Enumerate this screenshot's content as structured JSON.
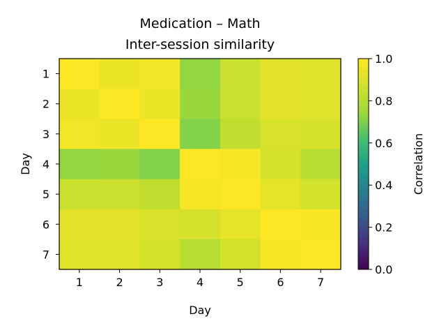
{
  "chart_data": {
    "type": "heatmap",
    "title": "Medication – Math",
    "subtitle": "Inter-session similarity",
    "xlabel": "Day",
    "ylabel": "Day",
    "x_categories": [
      "1",
      "2",
      "3",
      "4",
      "5",
      "6",
      "7"
    ],
    "y_categories": [
      "1",
      "2",
      "3",
      "4",
      "5",
      "6",
      "7"
    ],
    "values": [
      [
        1.0,
        0.95,
        0.97,
        0.73,
        0.85,
        0.92,
        0.91
      ],
      [
        0.95,
        1.0,
        0.95,
        0.74,
        0.85,
        0.92,
        0.91
      ],
      [
        0.97,
        0.95,
        1.0,
        0.71,
        0.83,
        0.89,
        0.88
      ],
      [
        0.73,
        0.74,
        0.71,
        1.0,
        0.98,
        0.88,
        0.81
      ],
      [
        0.85,
        0.85,
        0.83,
        0.98,
        1.0,
        0.93,
        0.87
      ],
      [
        0.92,
        0.92,
        0.89,
        0.88,
        0.93,
        1.0,
        0.98
      ],
      [
        0.91,
        0.91,
        0.88,
        0.81,
        0.87,
        0.98,
        1.0
      ]
    ],
    "colorbar": {
      "label": "Correlation",
      "range": [
        0,
        1
      ],
      "ticks": [
        "0.0",
        "0.2",
        "0.4",
        "0.6",
        "0.8",
        "1.0"
      ],
      "colormap": "viridis"
    },
    "grid": false
  }
}
